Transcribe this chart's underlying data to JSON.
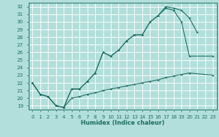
{
  "xlabel": "Humidex (Indice chaleur)",
  "bg_color": "#b2dfdb",
  "grid_color": "#ffffff",
  "line_color": "#1a6b60",
  "xlim": [
    -0.5,
    23.5
  ],
  "ylim": [
    18.5,
    32.5
  ],
  "xticks": [
    0,
    1,
    2,
    3,
    4,
    5,
    6,
    7,
    8,
    9,
    10,
    11,
    12,
    13,
    14,
    15,
    16,
    17,
    18,
    19,
    20,
    21,
    22,
    23
  ],
  "yticks": [
    19,
    20,
    21,
    22,
    23,
    24,
    25,
    26,
    27,
    28,
    29,
    30,
    31,
    32
  ],
  "curve1": {
    "x": [
      0,
      1,
      2,
      3,
      4,
      5,
      6,
      7,
      8,
      9,
      10,
      11,
      12,
      13,
      14,
      15,
      16,
      17,
      18,
      19,
      20,
      21
    ],
    "y": [
      22,
      20.5,
      20.2,
      19.0,
      18.8,
      21.2,
      21.2,
      22.2,
      23.3,
      26.0,
      25.5,
      26.3,
      27.5,
      28.3,
      28.3,
      30.0,
      30.8,
      32.0,
      31.8,
      31.5,
      30.5,
      28.6
    ]
  },
  "curve2": {
    "x": [
      0,
      1,
      2,
      3,
      4,
      5,
      6,
      7,
      8,
      9,
      10,
      11,
      12,
      13,
      14,
      15,
      16,
      17,
      18,
      19,
      20,
      23
    ],
    "y": [
      22,
      20.5,
      20.2,
      19.0,
      18.8,
      21.2,
      21.2,
      22.2,
      23.3,
      26.0,
      25.5,
      26.3,
      27.5,
      28.3,
      28.3,
      30.0,
      30.8,
      31.8,
      31.5,
      30.0,
      25.5,
      25.5
    ]
  },
  "curve3": {
    "x": [
      0,
      1,
      2,
      3,
      4,
      5,
      6,
      7,
      8,
      9,
      10,
      11,
      12,
      13,
      14,
      15,
      16,
      17,
      18,
      19,
      20,
      23
    ],
    "y": [
      22,
      20.5,
      20.2,
      19.0,
      18.8,
      20.0,
      20.2,
      20.5,
      20.7,
      21.0,
      21.2,
      21.4,
      21.6,
      21.8,
      22.0,
      22.2,
      22.4,
      22.7,
      22.9,
      23.1,
      23.3,
      23.0
    ]
  }
}
